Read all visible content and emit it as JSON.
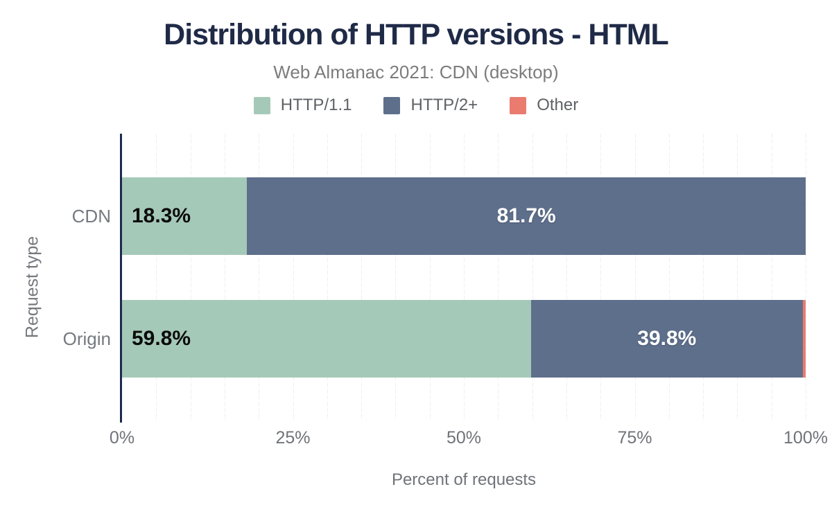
{
  "chart_data": {
    "type": "bar",
    "orientation": "horizontal-stacked",
    "title": "Distribution of HTTP versions - HTML",
    "subtitle": "Web Almanac 2021: CDN (desktop)",
    "categories": [
      "CDN",
      "Origin"
    ],
    "series": [
      {
        "name": "HTTP/1.1",
        "color": "#a5c9b8",
        "values": [
          18.3,
          59.8
        ],
        "labels": [
          "18.3%",
          "59.8%"
        ],
        "label_style": "black",
        "label_align": "left"
      },
      {
        "name": "HTTP/2+",
        "color": "#5e6f8c",
        "values": [
          81.7,
          39.8
        ],
        "labels": [
          "81.7%",
          "39.8%"
        ],
        "label_style": "white",
        "label_align": "center"
      },
      {
        "name": "Other",
        "color": "#e97b6f",
        "values": [
          0.0,
          0.4
        ],
        "labels": [
          "",
          ""
        ],
        "label_style": "white",
        "label_align": "center"
      }
    ],
    "xlabel": "Percent of requests",
    "ylabel": "Request type",
    "x_ticks": [
      "0%",
      "25%",
      "50%",
      "75%",
      "100%"
    ],
    "xlim": [
      0,
      100
    ],
    "gridline_step_percent": 5,
    "grid": "on",
    "legend_position": "top",
    "colors": {
      "title": "#1f2a47",
      "subtitle": "#7c7c7c",
      "axis_line": "#1c2b4a",
      "axis_text": "#6f7379",
      "gridline": "#efefef",
      "background": "#ffffff"
    }
  }
}
